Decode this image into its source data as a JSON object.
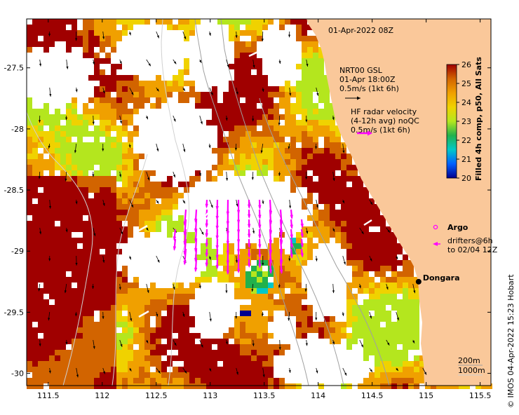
{
  "map": {
    "date_label": "01-Apr-2022 08Z",
    "lon_ticks": [
      "111.5",
      "112",
      "112.5",
      "113",
      "113.5",
      "114",
      "114.5",
      "115",
      "115.5"
    ],
    "lat_ticks": [
      "-27.5",
      "-28",
      "-28.5",
      "-29",
      "-29.5",
      "-30"
    ],
    "extent": {
      "lon": [
        111.3,
        115.6
      ],
      "lat": [
        -30.1,
        -27.1
      ]
    }
  },
  "legend": {
    "model_name": "NRT00 GSL",
    "model_time": "01-Apr 18:00Z",
    "model_scale": "0.5m/s (1kt 6h)",
    "hf_title": "HF radar velocity",
    "hf_sub": "(4-12h avg) noQC",
    "hf_scale": "0.5m/s (1kt 6h)",
    "argo_label": "Argo",
    "drifter_label": "drifters@6h",
    "drifter_sub": "to 02/04 12Z",
    "contour_200": "200m",
    "contour_1000": "1000m"
  },
  "colorbar": {
    "title": "Filled 4h comp, p50, All Sats",
    "ticks": [
      "26",
      "25",
      "24",
      "23",
      "22",
      "21",
      "20"
    ],
    "range": [
      20,
      26
    ],
    "colors": [
      "#00008f",
      "#0060ff",
      "#00c8c8",
      "#22b14c",
      "#b4e61e",
      "#f0d200",
      "#f0a000",
      "#d26400",
      "#a00000"
    ]
  },
  "places": [
    {
      "name": "Dongara",
      "lon": 114.93,
      "lat": -29.25
    }
  ],
  "credit": "© IMOS 04-Apr-2022 15:23 Hobart",
  "colors": {
    "land": "#fac89a",
    "arrow_hf": "#ff00ff",
    "arrow_model": "#000000",
    "contour": "#a0a0a0"
  }
}
